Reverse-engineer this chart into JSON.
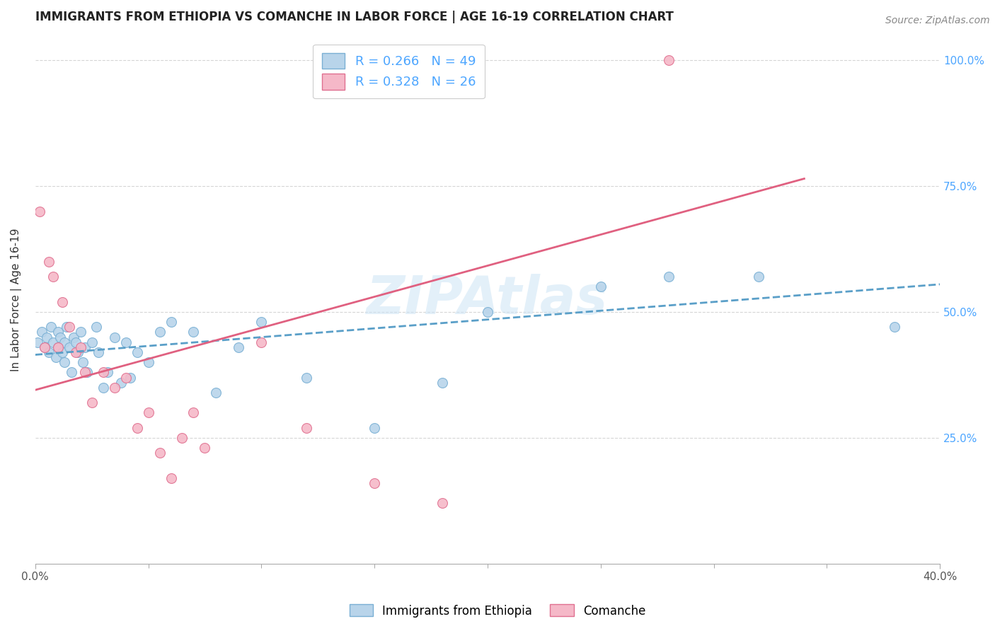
{
  "title": "IMMIGRANTS FROM ETHIOPIA VS COMANCHE IN LABOR FORCE | AGE 16-19 CORRELATION CHART",
  "source": "Source: ZipAtlas.com",
  "ylabel": "In Labor Force | Age 16-19",
  "xlim": [
    0.0,
    0.4
  ],
  "ylim": [
    0.0,
    1.05
  ],
  "xtick_positions": [
    0.0,
    0.4
  ],
  "xticklabels": [
    "0.0%",
    "40.0%"
  ],
  "yticks": [
    0.25,
    0.5,
    0.75,
    1.0
  ],
  "yticklabels": [
    "25.0%",
    "50.0%",
    "75.0%",
    "100.0%"
  ],
  "color_ethiopia_fill": "#b8d4ea",
  "color_ethiopia_edge": "#7ab0d4",
  "color_comanche_fill": "#f5b8c8",
  "color_comanche_edge": "#e07090",
  "color_line_ethiopia": "#5a9fc8",
  "color_line_comanche": "#e06080",
  "dot_size": 100,
  "ethiopia_x": [
    0.001,
    0.003,
    0.004,
    0.005,
    0.006,
    0.007,
    0.008,
    0.009,
    0.01,
    0.01,
    0.011,
    0.012,
    0.013,
    0.013,
    0.014,
    0.015,
    0.016,
    0.017,
    0.018,
    0.019,
    0.02,
    0.021,
    0.022,
    0.023,
    0.025,
    0.027,
    0.028,
    0.03,
    0.032,
    0.035,
    0.038,
    0.04,
    0.042,
    0.045,
    0.05,
    0.055,
    0.06,
    0.07,
    0.08,
    0.09,
    0.1,
    0.12,
    0.15,
    0.18,
    0.2,
    0.25,
    0.28,
    0.32,
    0.38
  ],
  "ethiopia_y": [
    0.44,
    0.46,
    0.43,
    0.45,
    0.42,
    0.47,
    0.44,
    0.41,
    0.43,
    0.46,
    0.45,
    0.42,
    0.44,
    0.4,
    0.47,
    0.43,
    0.38,
    0.45,
    0.44,
    0.42,
    0.46,
    0.4,
    0.43,
    0.38,
    0.44,
    0.47,
    0.42,
    0.35,
    0.38,
    0.45,
    0.36,
    0.44,
    0.37,
    0.42,
    0.4,
    0.46,
    0.48,
    0.46,
    0.34,
    0.43,
    0.48,
    0.37,
    0.27,
    0.36,
    0.5,
    0.55,
    0.57,
    0.57,
    0.47
  ],
  "comanche_x": [
    0.002,
    0.004,
    0.006,
    0.008,
    0.01,
    0.012,
    0.015,
    0.018,
    0.02,
    0.022,
    0.025,
    0.03,
    0.035,
    0.04,
    0.045,
    0.05,
    0.055,
    0.06,
    0.065,
    0.07,
    0.075,
    0.1,
    0.12,
    0.15,
    0.18,
    0.28
  ],
  "comanche_y": [
    0.7,
    0.43,
    0.6,
    0.57,
    0.43,
    0.52,
    0.47,
    0.42,
    0.43,
    0.38,
    0.32,
    0.38,
    0.35,
    0.37,
    0.27,
    0.3,
    0.22,
    0.17,
    0.25,
    0.3,
    0.23,
    0.44,
    0.27,
    0.16,
    0.12,
    1.0
  ],
  "line_eth_x0": 0.0,
  "line_eth_x1": 0.4,
  "line_eth_y0": 0.415,
  "line_eth_y1": 0.555,
  "line_com_x0": 0.0,
  "line_com_x1": 0.34,
  "line_com_y0": 0.345,
  "line_com_y1": 0.765,
  "title_fontsize": 12,
  "axis_label_fontsize": 11,
  "tick_fontsize": 11
}
